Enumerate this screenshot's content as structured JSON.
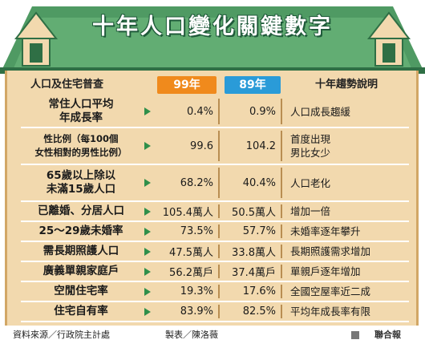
{
  "title": "十年人口變化關鍵數字",
  "headers": {
    "category": "人口及住宅普查",
    "col99": "99年",
    "col89": "89年",
    "trend": "十年趨勢說明"
  },
  "rows": [
    {
      "label1": "常住人口平均",
      "label2": "年成長率",
      "v99": "0.4%",
      "v89": "0.9%",
      "trend1": "人口成長趨緩",
      "trend2": ""
    },
    {
      "label1": "性比例（每100個",
      "label2": "女性相對的男性比例）",
      "v99": "99.6",
      "v89": "104.2",
      "trend1": "首度出現",
      "trend2": "男比女少"
    },
    {
      "label1": "65歲以上除以",
      "label2": "未滿15歲人口",
      "v99": "68.2%",
      "v89": "40.4%",
      "trend1": "人口老化",
      "trend2": ""
    },
    {
      "label1": "已離婚、分居人口",
      "label2": "",
      "v99": "105.4萬人",
      "v89": "50.5萬人",
      "trend1": "增加一倍",
      "trend2": ""
    },
    {
      "label1": "25～29歲未婚率",
      "label2": "",
      "v99": "73.5%",
      "v89": "57.7%",
      "trend1": "未婚率逐年攀升",
      "trend2": ""
    },
    {
      "label1": "需長期照護人口",
      "label2": "",
      "v99": "47.5萬人",
      "v89": "33.8萬人",
      "trend1": "長期照護需求增加",
      "trend2": ""
    },
    {
      "label1": "廣義單親家庭戶",
      "label2": "",
      "v99": "56.2萬戶",
      "v89": "37.4萬戶",
      "trend1": "單親戶逐年增加",
      "trend2": ""
    },
    {
      "label1": "空閒住宅率",
      "label2": "",
      "v99": "19.3%",
      "v89": "17.6%",
      "trend1": "全國空屋率近二成",
      "trend2": ""
    },
    {
      "label1": "住宅自有率",
      "label2": "",
      "v99": "83.9%",
      "v89": "82.5%",
      "trend1": "平均年成長率有限",
      "trend2": ""
    }
  ],
  "footer": {
    "source": "資料來源／行政院主計處",
    "made": "製表／陳洛薇",
    "brand": "聯合報"
  },
  "chart_data": {
    "type": "table",
    "title": "十年人口變化關鍵數字",
    "columns": [
      "人口及住宅普查",
      "99年",
      "89年",
      "十年趨勢說明"
    ],
    "rows": [
      [
        "常住人口平均年成長率",
        "0.4%",
        "0.9%",
        "人口成長趨緩"
      ],
      [
        "性比例（每100個女性相對的男性比例）",
        "99.6",
        "104.2",
        "首度出現男比女少"
      ],
      [
        "65歲以上除以未滿15歲人口",
        "68.2%",
        "40.4%",
        "人口老化"
      ],
      [
        "已離婚、分居人口",
        "105.4萬人",
        "50.5萬人",
        "增加一倍"
      ],
      [
        "25～29歲未婚率",
        "73.5%",
        "57.7%",
        "未婚率逐年攀升"
      ],
      [
        "需長期照護人口",
        "47.5萬人",
        "33.8萬人",
        "長期照護需求增加"
      ],
      [
        "廣義單親家庭戶",
        "56.2萬戶",
        "37.4萬戶",
        "單親戶逐年增加"
      ],
      [
        "空閒住宅率",
        "19.3%",
        "17.6%",
        "全國空屋率近二成"
      ],
      [
        "住宅自有率",
        "83.9%",
        "82.5%",
        "平均年成長率有限"
      ]
    ]
  },
  "colors": {
    "roof": "#4f9a63",
    "wall": "#f2d9ae",
    "col99": "#f08a1c",
    "col89": "#2a9bd8",
    "arrow": "#2f8f4a"
  }
}
